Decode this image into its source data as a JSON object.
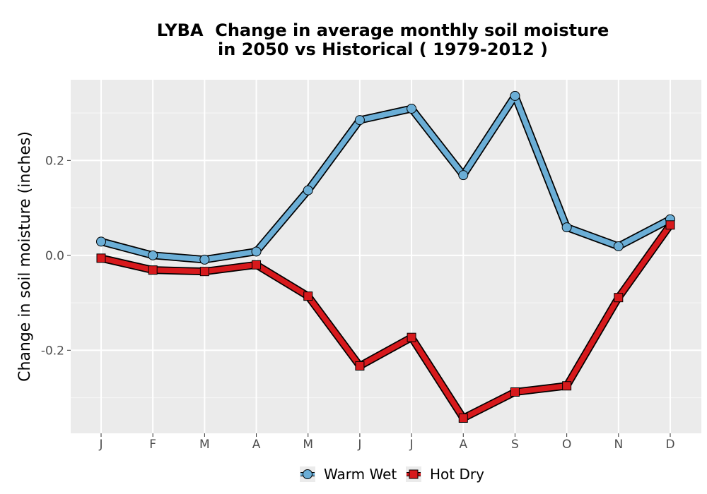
{
  "chart_data": {
    "type": "line",
    "title_line1": "LYBA  Change in average monthly soil moisture",
    "title_line2": "in 2050 vs Historical ( 1979-2012 )",
    "ylabel": "Change in soil moisture (inches)",
    "xlabel": "",
    "categories": [
      "J",
      "F",
      "M",
      "A",
      "M",
      "J",
      "J",
      "A",
      "S",
      "O",
      "N",
      "D"
    ],
    "y_ticks": [
      -0.2,
      0.0,
      0.2
    ],
    "y_tick_labels": [
      "-0.2",
      "0.0",
      "0.2"
    ],
    "ylim": [
      -0.375,
      0.37
    ],
    "grid": true,
    "legend_position": "bottom",
    "series": [
      {
        "name": "Warm Wet",
        "marker": "circle",
        "color": "#6baed6",
        "values": [
          0.029,
          0.0,
          -0.009,
          0.008,
          0.137,
          0.285,
          0.309,
          0.169,
          0.336,
          0.059,
          0.019,
          0.076
        ]
      },
      {
        "name": "Hot Dry",
        "marker": "square",
        "color": "#d7191c",
        "values": [
          -0.006,
          -0.031,
          -0.034,
          -0.02,
          -0.086,
          -0.233,
          -0.173,
          -0.343,
          -0.288,
          -0.275,
          -0.089,
          0.064
        ]
      }
    ]
  }
}
